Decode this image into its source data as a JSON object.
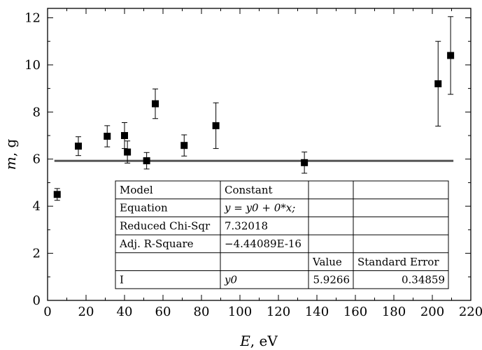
{
  "chart_data": {
    "type": "scatter",
    "xlabel_var": "E",
    "xlabel_unit": ", eV",
    "ylabel_var": "m",
    "ylabel_unit": ", g",
    "xlim": [
      0,
      220
    ],
    "ylim": [
      0,
      12.4
    ],
    "xticks": [
      0,
      20,
      40,
      60,
      80,
      100,
      120,
      140,
      160,
      180,
      200,
      220
    ],
    "yticks": [
      0,
      2,
      4,
      6,
      8,
      10,
      12
    ],
    "grid": false,
    "series": [
      {
        "marker": "square",
        "color": "#000000",
        "points": [
          {
            "x": 5,
            "y": 4.5,
            "err": 0.25
          },
          {
            "x": 16,
            "y": 6.55,
            "err": 0.4
          },
          {
            "x": 31,
            "y": 6.97,
            "err": 0.45
          },
          {
            "x": 40,
            "y": 7.0,
            "err": 0.55
          },
          {
            "x": 41.5,
            "y": 6.3,
            "err": 0.47
          },
          {
            "x": 51.5,
            "y": 5.93,
            "err": 0.35
          },
          {
            "x": 56,
            "y": 8.35,
            "err": 0.63
          },
          {
            "x": 71,
            "y": 6.58,
            "err": 0.45
          },
          {
            "x": 87.5,
            "y": 7.42,
            "err": 0.97
          },
          {
            "x": 133.5,
            "y": 5.85,
            "err": 0.45
          },
          {
            "x": 203,
            "y": 9.2,
            "err": 1.8
          },
          {
            "x": 209.5,
            "y": 10.4,
            "err": 1.65
          }
        ]
      }
    ],
    "fit_line": {
      "y": 5.9266,
      "x_start": 5,
      "x_end": 209.5,
      "color": "#555555"
    },
    "fit_table": [
      [
        "Model",
        "Constant",
        "",
        ""
      ],
      [
        "Equation",
        "y = y0 + 0*x;",
        "",
        ""
      ],
      [
        "Reduced Chi-Sqr",
        "7.32018",
        "",
        ""
      ],
      [
        "Adj. R-Square",
        "−4.44089E-16",
        "",
        ""
      ],
      [
        "",
        "",
        "Value",
        "Standard Error"
      ],
      [
        "I",
        "y0",
        "5.9266",
        "0.34859"
      ]
    ]
  }
}
